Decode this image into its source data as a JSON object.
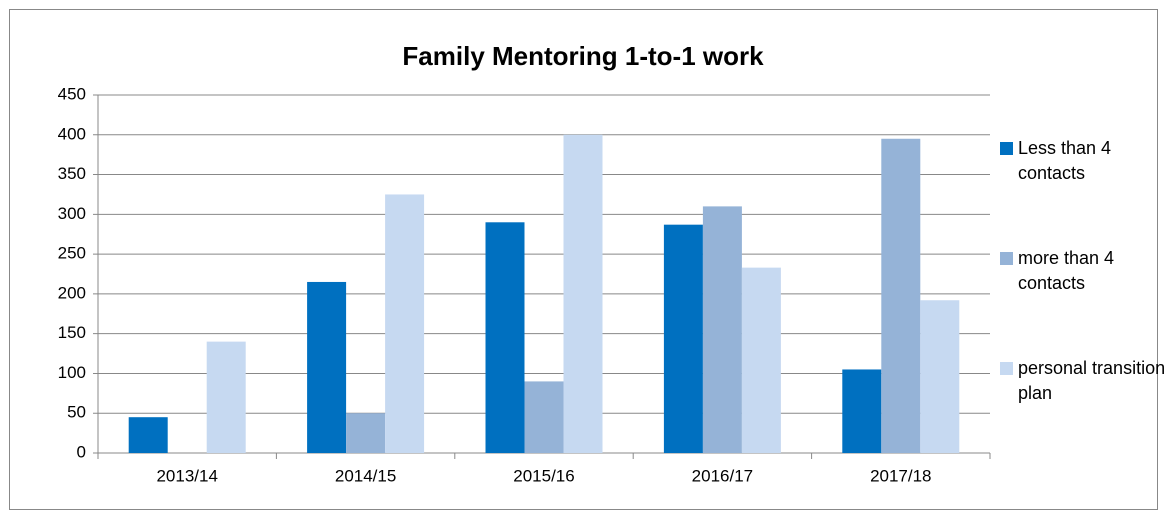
{
  "chart_data": {
    "type": "bar",
    "title": "Family Mentoring 1-to-1 work",
    "categories": [
      "2013/14",
      "2014/15",
      "2015/16",
      "2016/17",
      "2017/18"
    ],
    "series": [
      {
        "name": "Less than 4 contacts",
        "color": "#0070c0",
        "values": [
          45,
          215,
          290,
          287,
          105
        ]
      },
      {
        "name": "more than 4 contacts",
        "color": "#95b3d7",
        "values": [
          0,
          50,
          90,
          310,
          395
        ]
      },
      {
        "name": "personal transition plan",
        "color": "#c6d9f1",
        "values": [
          140,
          325,
          400,
          233,
          192
        ]
      }
    ],
    "ylim": [
      0,
      450
    ],
    "yticks": [
      0,
      50,
      100,
      150,
      200,
      250,
      300,
      350,
      400,
      450
    ],
    "grid": true,
    "legend": "right"
  }
}
